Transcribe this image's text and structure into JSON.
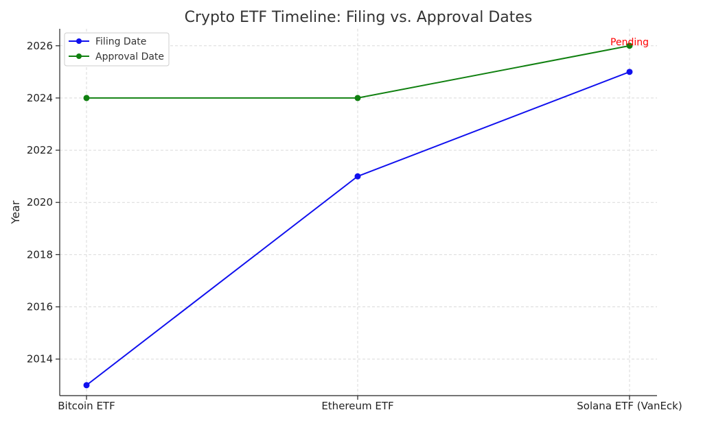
{
  "chart_data": {
    "type": "line",
    "title": "Crypto ETF Timeline: Filing vs. Approval Dates",
    "xlabel": "",
    "ylabel": "Year",
    "categories": [
      "Bitcoin ETF",
      "Ethereum ETF",
      "Solana ETF (VanEck)"
    ],
    "yticks": [
      2014,
      2016,
      2018,
      2020,
      2022,
      2024,
      2026
    ],
    "ylim": [
      2012.6,
      2026.65
    ],
    "grid": true,
    "legend_position": "top-left",
    "series": [
      {
        "name": "Filing Date",
        "values": [
          2013,
          2021,
          2025
        ],
        "color": "#1010ee"
      },
      {
        "name": "Approval Date",
        "values": [
          2024,
          2024,
          2026
        ],
        "color": "#108010"
      }
    ],
    "annotations": [
      {
        "text": "Pending",
        "category": "Solana ETF (VanEck)",
        "y": 2026,
        "color": "#ff0000"
      }
    ]
  }
}
